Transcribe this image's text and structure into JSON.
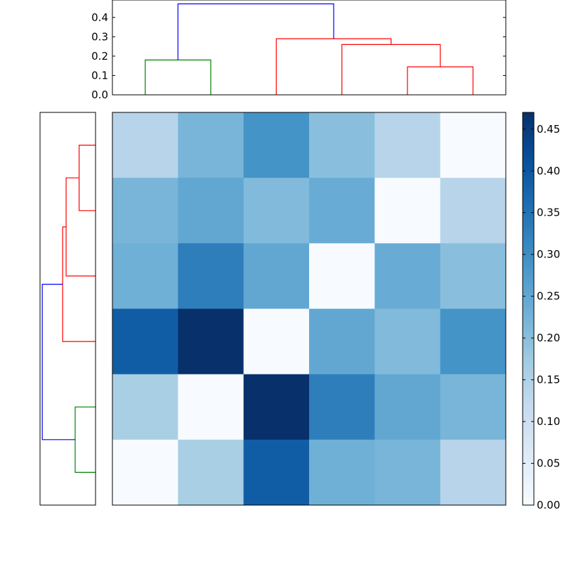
{
  "chart_data": {
    "type": "heatmap",
    "title": "",
    "xlabel": "",
    "ylabel": "",
    "colormap": "Blues",
    "colors": {
      "link_blue": "#0000ff",
      "link_red": "#ff0000",
      "link_green": "#008000"
    },
    "matrix": [
      [
        0.14,
        0.22,
        0.29,
        0.2,
        0.14,
        0.0
      ],
      [
        0.22,
        0.25,
        0.21,
        0.24,
        0.0,
        0.14
      ],
      [
        0.23,
        0.33,
        0.25,
        0.0,
        0.24,
        0.2
      ],
      [
        0.39,
        0.47,
        0.0,
        0.25,
        0.21,
        0.29
      ],
      [
        0.16,
        0.0,
        0.47,
        0.33,
        0.25,
        0.22
      ],
      [
        0.0,
        0.16,
        0.39,
        0.23,
        0.22,
        0.14
      ]
    ],
    "colorbar": {
      "vmin": 0.0,
      "vmax": 0.47,
      "ticks": [
        0.0,
        0.05,
        0.1,
        0.15,
        0.2,
        0.25,
        0.3,
        0.35,
        0.4,
        0.45
      ],
      "tick_labels": [
        "0.00",
        "0.05",
        "0.10",
        "0.15",
        "0.20",
        "0.25",
        "0.30",
        "0.35",
        "0.40",
        "0.45"
      ]
    },
    "top_dendrogram": {
      "ylim": [
        0.0,
        0.49
      ],
      "ticks": [
        0.0,
        0.1,
        0.2,
        0.3,
        0.4
      ],
      "tick_labels": [
        "0.0",
        "0.1",
        "0.2",
        "0.3",
        "0.4"
      ],
      "leaf_count": 6,
      "links": [
        {
          "left_leaf": 4.0,
          "right_leaf": 5.0,
          "left_height": 0.0,
          "right_height": 0.0,
          "height": 0.145,
          "color": "red"
        },
        {
          "left_leaf": 3.0,
          "right_leaf": 4.5,
          "left_height": 0.0,
          "right_height": 0.145,
          "height": 0.26,
          "color": "red"
        },
        {
          "left_leaf": 2.0,
          "right_leaf": 3.75,
          "left_height": 0.0,
          "right_height": 0.26,
          "height": 0.29,
          "color": "red"
        },
        {
          "left_leaf": 0.0,
          "right_leaf": 1.0,
          "left_height": 0.0,
          "right_height": 0.0,
          "height": 0.18,
          "color": "green"
        },
        {
          "left_leaf": 0.5,
          "right_leaf": 2.875,
          "left_height": 0.18,
          "right_height": 0.29,
          "height": 0.47,
          "color": "blue"
        }
      ]
    },
    "left_dendrogram": {
      "xlim": [
        0.0,
        0.49
      ],
      "leaf_count": 6,
      "links": [
        {
          "left_leaf": 5.0,
          "right_leaf": 4.0,
          "left_height": 0.0,
          "right_height": 0.0,
          "height": 0.145,
          "color": "red"
        },
        {
          "left_leaf": 4.5,
          "right_leaf": 3.0,
          "left_height": 0.145,
          "right_height": 0.0,
          "height": 0.26,
          "color": "red"
        },
        {
          "left_leaf": 3.75,
          "right_leaf": 2.0,
          "left_height": 0.26,
          "right_height": 0.0,
          "height": 0.29,
          "color": "red"
        },
        {
          "left_leaf": 1.0,
          "right_leaf": 0.0,
          "left_height": 0.0,
          "right_height": 0.0,
          "height": 0.18,
          "color": "green"
        },
        {
          "left_leaf": 2.875,
          "right_leaf": 0.5,
          "left_height": 0.29,
          "right_height": 0.18,
          "height": 0.47,
          "color": "blue"
        }
      ]
    }
  }
}
